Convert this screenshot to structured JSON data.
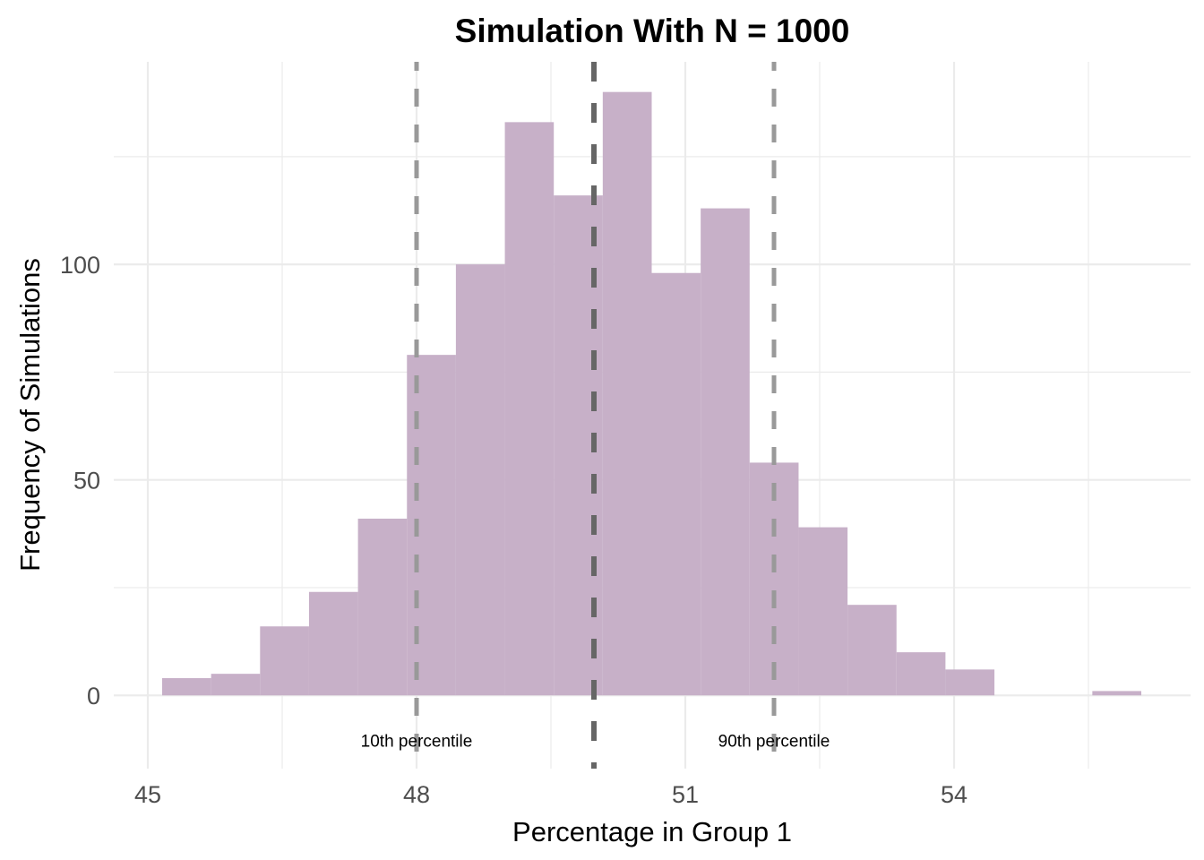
{
  "chart_data": {
    "type": "bar",
    "subtype": "histogram",
    "title": "Simulation With N = 1000",
    "xlabel": "Percentage in Group 1",
    "ylabel": "Frequency of Simulations",
    "xlim": [
      44.62,
      56.64
    ],
    "ylim": [
      -17,
      147
    ],
    "grid": true,
    "x_major_ticks": [
      45,
      48,
      51,
      54
    ],
    "x_tick_labels": [
      "45",
      "48",
      "51",
      "54"
    ],
    "x_minor_ticks": [
      46.5,
      49.5,
      52.5,
      55.5
    ],
    "y_major_ticks": [
      0,
      50,
      100
    ],
    "y_tick_labels": [
      "0",
      "50",
      "100"
    ],
    "y_minor_ticks": [
      25,
      75,
      125
    ],
    "bin_start": 45.16,
    "bin_width": 0.5465,
    "values": [
      4,
      5,
      16,
      24,
      41,
      79,
      100,
      133,
      116,
      140,
      98,
      113,
      54,
      39,
      21,
      10,
      6,
      0,
      0,
      1
    ],
    "bar_color": "#C5ADC6",
    "reference_lines": [
      {
        "name": "10th percentile",
        "x": 48.0,
        "color": "#999999",
        "style": "dashed",
        "label": "10th percentile"
      },
      {
        "name": "mean",
        "x": 49.98,
        "color": "#666666",
        "style": "dashed"
      },
      {
        "name": "90th percentile",
        "x": 51.99,
        "color": "#999999",
        "style": "dashed",
        "label": "90th percentile"
      }
    ],
    "annotation_y": -10.5,
    "legend": "none"
  }
}
